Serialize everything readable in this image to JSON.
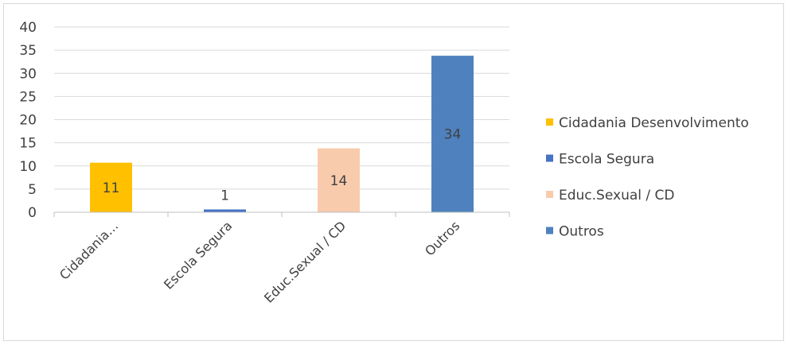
{
  "chart_data": {
    "type": "bar",
    "title": "",
    "xlabel": "",
    "ylabel": "",
    "ylim": [
      0,
      40
    ],
    "yticks": [
      0,
      5,
      10,
      15,
      20,
      25,
      30,
      35,
      40
    ],
    "grid": true,
    "legend_placement": "right",
    "categories": [
      "Cidadania…",
      "Escola Segura",
      "Educ.Sexual / CD",
      "Outros"
    ],
    "values": [
      11,
      1,
      14,
      34
    ],
    "data_labels": [
      "11",
      "1",
      "14",
      "34"
    ],
    "values_estimated": [
      10.7,
      0.6,
      13.8,
      33.8
    ],
    "colors": [
      "#FFC000",
      "#4472C4",
      "#F8CBAD",
      "#4E81BD"
    ],
    "legend": [
      {
        "label": "Cidadania Desenvolvimento",
        "color": "#FFC000"
      },
      {
        "label": "Escola Segura",
        "color": "#4472C4"
      },
      {
        "label": "Educ.Sexual / CD",
        "color": "#F8CBAD"
      },
      {
        "label": "Outros",
        "color": "#4E81BD"
      }
    ]
  }
}
